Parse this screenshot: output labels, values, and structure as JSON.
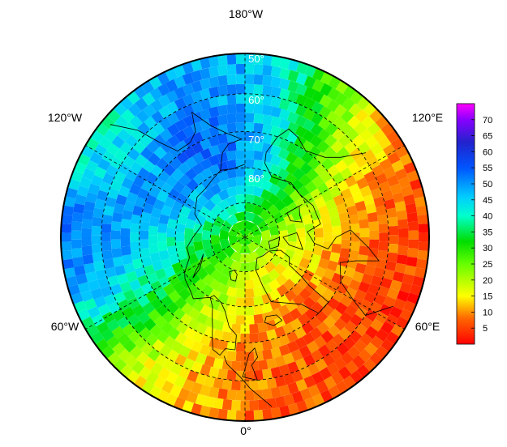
{
  "map": {
    "projection": "north-polar-stereographic",
    "lon_labels": [
      {
        "key": "180W",
        "text": "180°W"
      },
      {
        "key": "120W",
        "text": "120°W"
      },
      {
        "key": "120E",
        "text": "120°E"
      },
      {
        "key": "60W",
        "text": "60°W"
      },
      {
        "key": "60E",
        "text": "60°E"
      },
      {
        "key": "0",
        "text": "0°"
      }
    ],
    "lat_labels": [
      {
        "key": "50",
        "text": "50°"
      },
      {
        "key": "60",
        "text": "60°"
      },
      {
        "key": "70",
        "text": "70°"
      },
      {
        "key": "80",
        "text": "80°"
      }
    ],
    "colors": {
      "background": "#ffffff",
      "border": "#000000",
      "graticule": "#000000",
      "coastline": "#000000"
    }
  },
  "colorbar": {
    "min": 0,
    "max": 75,
    "ticks": [
      "5",
      "10",
      "15",
      "20",
      "25",
      "30",
      "35",
      "40",
      "45",
      "50",
      "55",
      "60",
      "65",
      "70"
    ],
    "tick_values": [
      5,
      10,
      15,
      20,
      25,
      30,
      35,
      40,
      45,
      50,
      55,
      60,
      65,
      70
    ],
    "stops": [
      {
        "v": 0,
        "c": "#ff0000"
      },
      {
        "v": 8,
        "c": "#ff6600"
      },
      {
        "v": 15,
        "c": "#ffff00"
      },
      {
        "v": 25,
        "c": "#66ff00"
      },
      {
        "v": 32,
        "c": "#00dd00"
      },
      {
        "v": 40,
        "c": "#00ffcc"
      },
      {
        "v": 46,
        "c": "#00ccff"
      },
      {
        "v": 55,
        "c": "#0055ff"
      },
      {
        "v": 63,
        "c": "#2222cc"
      },
      {
        "v": 70,
        "c": "#8800ff"
      },
      {
        "v": 75,
        "c": "#ff00ff"
      }
    ]
  },
  "field_regions": [
    {
      "lon": -170,
      "lat": 62,
      "value": 72,
      "spread": 18
    },
    {
      "lon": 150,
      "lat": 58,
      "value": 68,
      "spread": 14
    },
    {
      "lon": 170,
      "lat": 72,
      "value": 62,
      "spread": 12
    },
    {
      "lon": 110,
      "lat": 58,
      "value": 58,
      "spread": 16
    },
    {
      "lon": 80,
      "lat": 58,
      "value": 60,
      "spread": 12
    },
    {
      "lon": 95,
      "lat": 70,
      "value": 45,
      "spread": 12
    },
    {
      "lon": 60,
      "lat": 72,
      "value": 28,
      "spread": 14
    },
    {
      "lon": 20,
      "lat": 62,
      "value": 12,
      "spread": 18
    },
    {
      "lon": -40,
      "lat": 70,
      "value": 4,
      "spread": 20
    },
    {
      "lon": -100,
      "lat": 60,
      "value": 4,
      "spread": 20
    },
    {
      "lon": -130,
      "lat": 52,
      "value": 3,
      "spread": 18
    },
    {
      "lon": -30,
      "lat": 55,
      "value": 6,
      "spread": 15
    },
    {
      "lon": -100,
      "lat": 75,
      "value": 25,
      "spread": 10
    },
    {
      "lon": 0,
      "lat": 85,
      "value": 22,
      "spread": 12
    },
    {
      "lon": 170,
      "lat": 52,
      "value": 30,
      "spread": 10
    },
    {
      "lon": 130,
      "lat": 48,
      "value": 20,
      "spread": 12
    }
  ]
}
